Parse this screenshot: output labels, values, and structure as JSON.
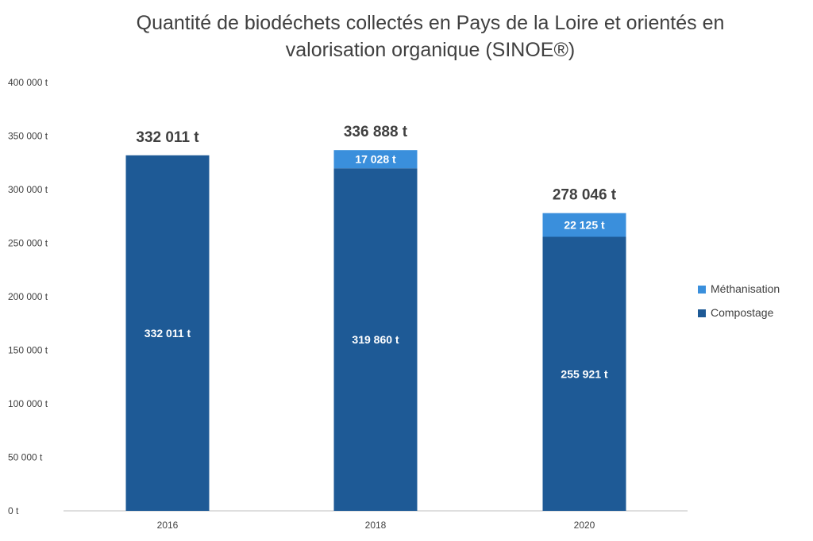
{
  "colors": {
    "Compostage": "#1e5a96",
    "Méthanisation": "#3a8fdc",
    "axis": "#bfbfbf",
    "text": "#404040"
  },
  "chart_data": {
    "type": "bar",
    "stacked": true,
    "title_lines": [
      "Quantité de biodéchets collectés en Pays de la Loire et orientés en",
      "valorisation organique (SINOE®)"
    ],
    "categories": [
      "2016",
      "2018",
      "2020"
    ],
    "series": [
      {
        "name": "Compostage",
        "values": [
          332011,
          319860,
          255921
        ],
        "labels": [
          "332 011 t",
          "319 860 t",
          "255 921 t"
        ]
      },
      {
        "name": "Méthanisation",
        "values": [
          0,
          17028,
          22125
        ],
        "labels": [
          "",
          "17 028 t",
          "22 125 t"
        ]
      }
    ],
    "totals": [
      332011,
      336888,
      278046
    ],
    "total_labels": [
      "332 011 t",
      "336 888 t",
      "278 046 t"
    ],
    "ylim": [
      0,
      400000
    ],
    "yticks": [
      0,
      50000,
      100000,
      150000,
      200000,
      250000,
      300000,
      350000,
      400000
    ],
    "ytick_labels": [
      "0 t",
      "50 000 t",
      "100 000 t",
      "150 000 t",
      "200 000 t",
      "250 000 t",
      "300 000 t",
      "350 000 t",
      "400 000 t"
    ],
    "grid": false,
    "legend_position": "right",
    "legend_order": [
      "Méthanisation",
      "Compostage"
    ]
  }
}
